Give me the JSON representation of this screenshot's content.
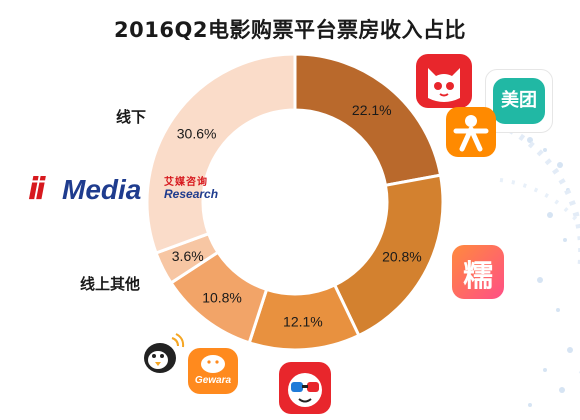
{
  "chart_data": {
    "type": "pie",
    "title": "2016Q2电影购票平台票房收入占比",
    "slices": [
      {
        "value": 22.1,
        "label": "22.1%",
        "color": "#b9692c"
      },
      {
        "value": 20.8,
        "label": "20.8%",
        "color": "#d3812f"
      },
      {
        "value": 12.1,
        "label": "12.1%",
        "color": "#e8913f"
      },
      {
        "value": 10.8,
        "label": "10.8%",
        "color": "#f2a468"
      },
      {
        "value": 3.6,
        "label": "3.6%",
        "color": "#f7c6a3"
      },
      {
        "value": 30.6,
        "label": "30.6%",
        "color": "#fadcc9"
      }
    ],
    "annotations": {
      "offline": "线下",
      "online_other": "线上其他"
    }
  },
  "watermark": {
    "prefix": "ii",
    "brand": "Media",
    "chinese": "艾媒咨询",
    "english": "Research"
  },
  "logos": {
    "meituan_text": "美团",
    "nuomi_text": "糯",
    "gewara_text": "Gewara",
    "maoyan": "maoyan-cat-icon",
    "dianping": "dianping-person-icon",
    "penguin": "penguin-mascot-icon",
    "taopiaopiao": "taopiaopiao-glasses-icon"
  }
}
